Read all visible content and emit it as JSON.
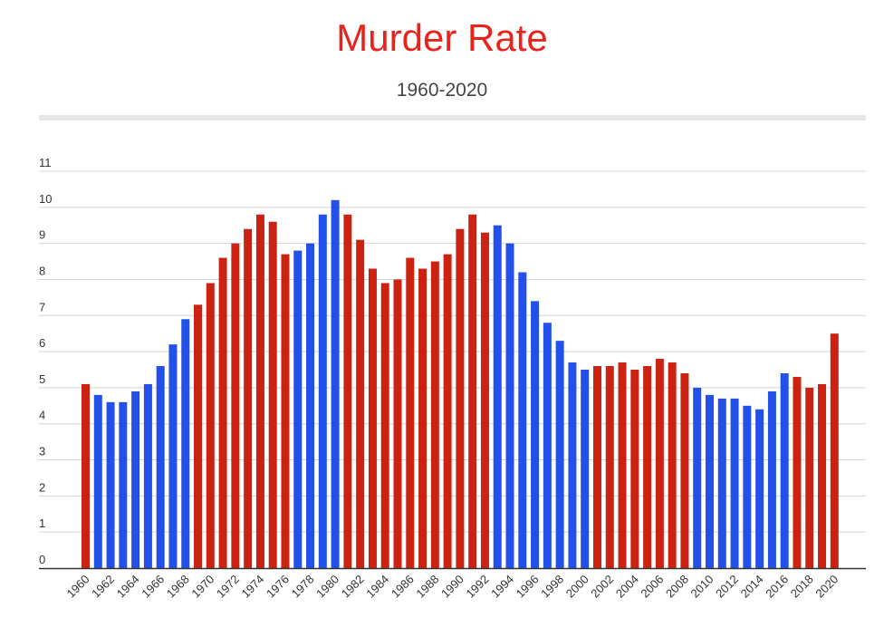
{
  "chart_data": {
    "type": "bar",
    "title": "Murder Rate",
    "subtitle": "1960-2020",
    "xlabel": "",
    "ylabel": "",
    "ylim": [
      0,
      11
    ],
    "yticks": [
      0,
      1,
      2,
      3,
      4,
      5,
      6,
      7,
      8,
      9,
      10,
      11
    ],
    "grid": true,
    "legend": "none",
    "colors": {
      "red": "#cc2212",
      "blue": "#2450ea",
      "title": "#e8231c"
    },
    "categories": [
      "1960",
      "1961",
      "1962",
      "1963",
      "1964",
      "1965",
      "1966",
      "1967",
      "1968",
      "1969",
      "1970",
      "1971",
      "1972",
      "1973",
      "1974",
      "1975",
      "1976",
      "1977",
      "1978",
      "1979",
      "1980",
      "1981",
      "1982",
      "1983",
      "1984",
      "1985",
      "1986",
      "1987",
      "1988",
      "1989",
      "1990",
      "1991",
      "1992",
      "1993",
      "1994",
      "1995",
      "1996",
      "1997",
      "1998",
      "1999",
      "2000",
      "2001",
      "2002",
      "2003",
      "2004",
      "2005",
      "2006",
      "2007",
      "2008",
      "2009",
      "2010",
      "2011",
      "2012",
      "2013",
      "2014",
      "2015",
      "2016",
      "2017",
      "2018",
      "2019",
      "2020"
    ],
    "xtick_labels": [
      "1960",
      "1962",
      "1964",
      "1966",
      "1968",
      "1970",
      "1972",
      "1974",
      "1976",
      "1978",
      "1980",
      "1982",
      "1984",
      "1986",
      "1988",
      "1990",
      "1992",
      "1994",
      "1996",
      "1998",
      "2000",
      "2002",
      "2004",
      "2006",
      "2008",
      "2010",
      "2012",
      "2014",
      "2016",
      "2018",
      "2020"
    ],
    "values": [
      5.1,
      4.8,
      4.6,
      4.6,
      4.9,
      5.1,
      5.6,
      6.2,
      6.9,
      7.3,
      7.9,
      8.6,
      9.0,
      9.4,
      9.8,
      9.6,
      8.7,
      8.8,
      9.0,
      9.8,
      10.2,
      9.8,
      9.1,
      8.3,
      7.9,
      8.0,
      8.6,
      8.3,
      8.5,
      8.7,
      9.4,
      9.8,
      9.3,
      9.5,
      9.0,
      8.2,
      7.4,
      6.8,
      6.3,
      5.7,
      5.5,
      5.6,
      5.6,
      5.7,
      5.5,
      5.6,
      5.8,
      5.7,
      5.4,
      5.0,
      4.8,
      4.7,
      4.7,
      4.5,
      4.4,
      4.9,
      5.4,
      5.3,
      5.0,
      5.1,
      6.5
    ],
    "bar_colors": [
      "red",
      "blue",
      "blue",
      "blue",
      "blue",
      "blue",
      "blue",
      "blue",
      "blue",
      "red",
      "red",
      "red",
      "red",
      "red",
      "red",
      "red",
      "red",
      "blue",
      "blue",
      "blue",
      "blue",
      "red",
      "red",
      "red",
      "red",
      "red",
      "red",
      "red",
      "red",
      "red",
      "red",
      "red",
      "red",
      "blue",
      "blue",
      "blue",
      "blue",
      "blue",
      "blue",
      "blue",
      "blue",
      "red",
      "red",
      "red",
      "red",
      "red",
      "red",
      "red",
      "red",
      "blue",
      "blue",
      "blue",
      "blue",
      "blue",
      "blue",
      "blue",
      "blue",
      "red",
      "red",
      "red",
      "red"
    ]
  }
}
